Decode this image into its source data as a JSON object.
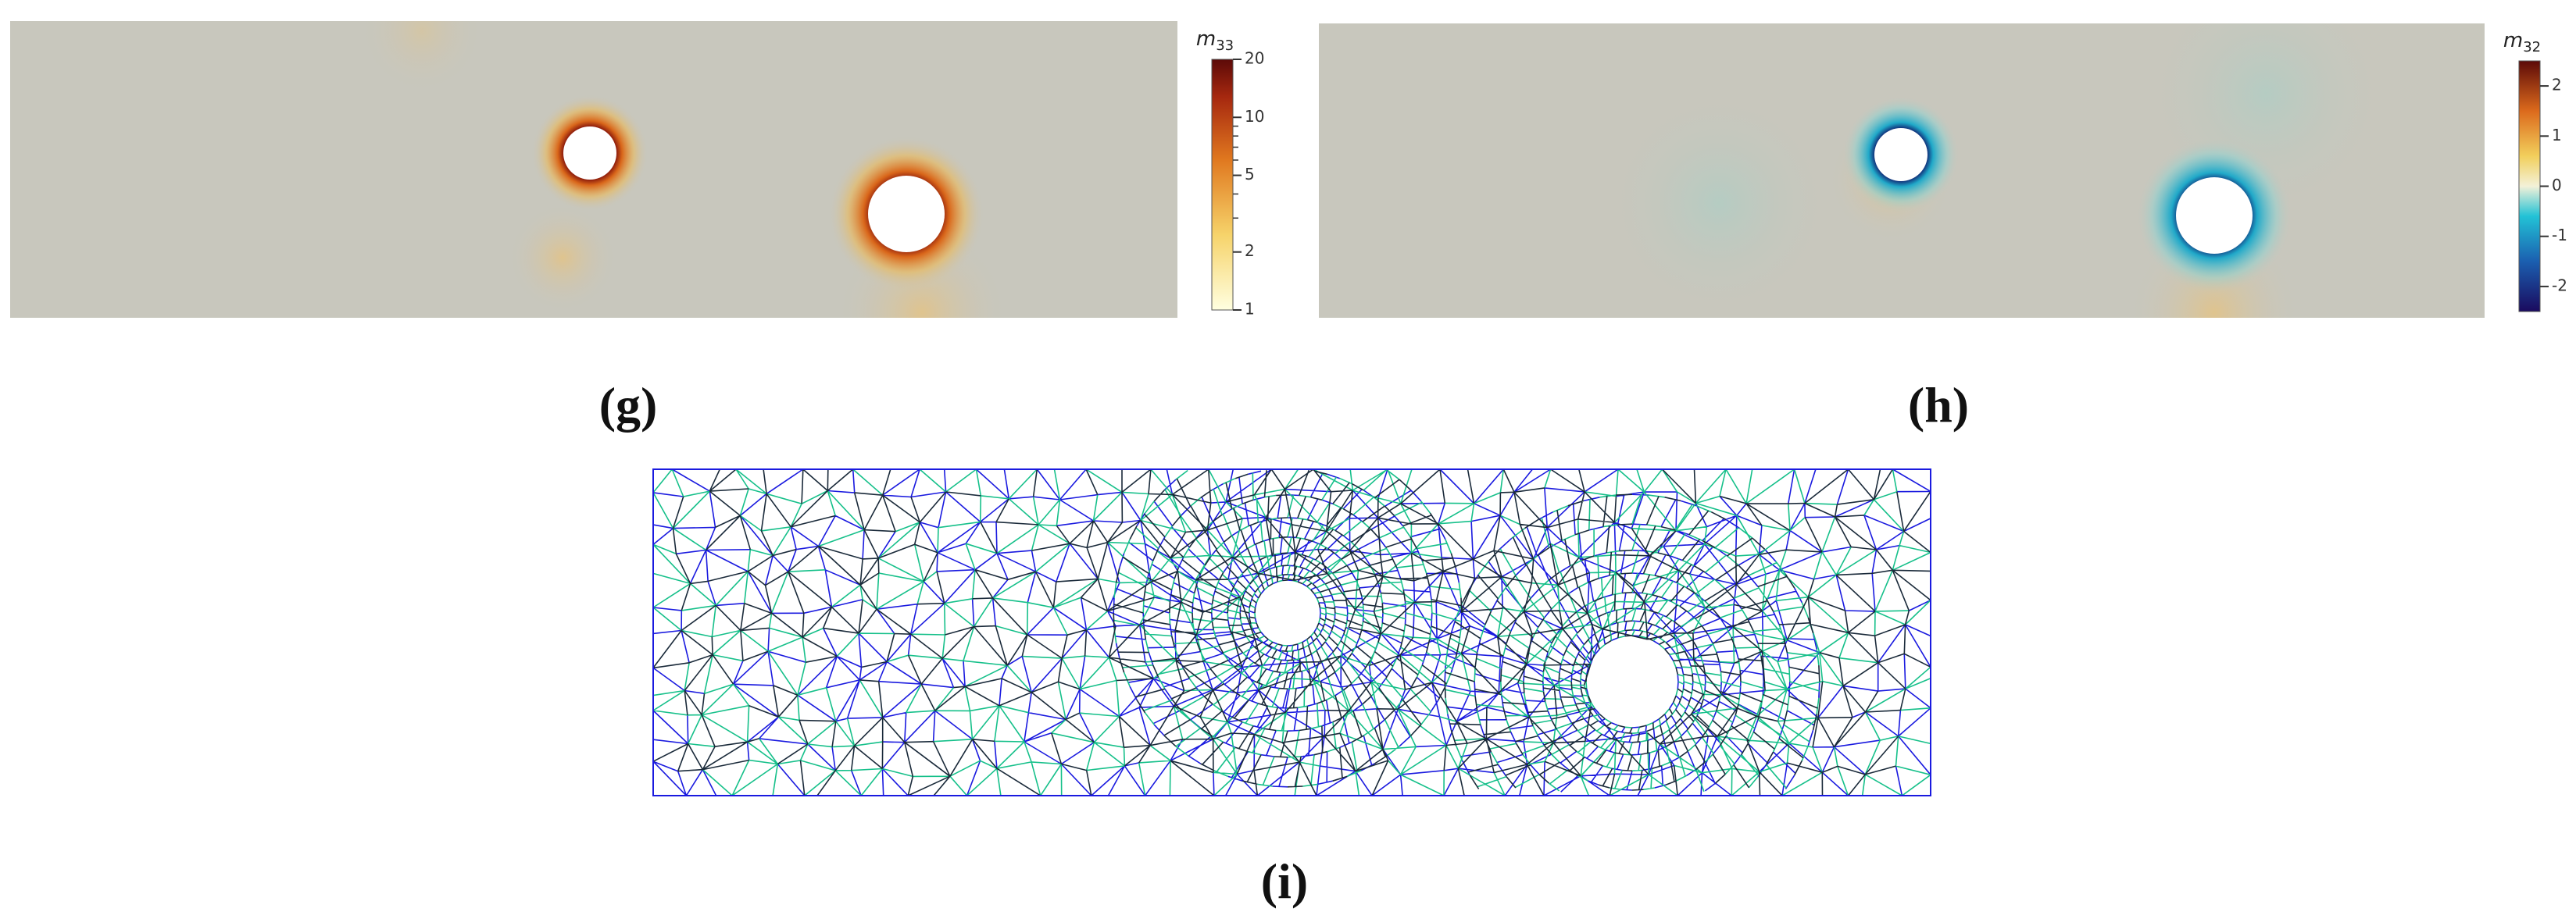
{
  "panels": [
    {
      "label": "(g)",
      "colorbar": {
        "title": {
          "symbol": "m",
          "subscript": "33"
        },
        "scale": "log",
        "lim": [
          1,
          20
        ],
        "ticks": [
          1,
          2,
          5,
          10,
          20
        ],
        "minor_ticks": [
          3,
          4,
          6,
          7,
          8,
          9
        ]
      }
    },
    {
      "label": "(h)",
      "colorbar": {
        "title": {
          "symbol": "m",
          "subscript": "32"
        },
        "scale": "linear",
        "lim": [
          -2.5,
          2.5
        ],
        "ticks": [
          -2,
          -1,
          0,
          1,
          2
        ]
      }
    },
    {
      "label": "(i)"
    }
  ]
}
